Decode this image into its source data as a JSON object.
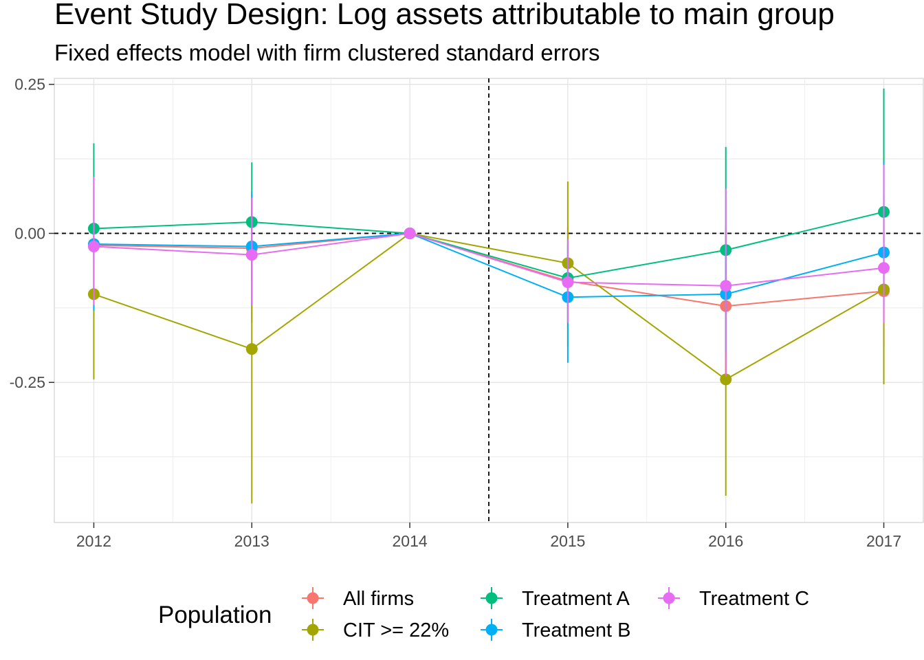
{
  "chart_data": {
    "type": "line",
    "title": "Event Study Design: Log assets attributable to main group",
    "subtitle": "Fixed effects model with firm clustered standard errors",
    "xlabel": "",
    "ylabel": "",
    "x": [
      2012,
      2013,
      2014,
      2015,
      2016,
      2017
    ],
    "xlim": [
      2011.75,
      2017.25
    ],
    "ylim": [
      -0.485,
      0.26
    ],
    "y_ticks": [
      -0.25,
      0.0,
      0.25
    ],
    "y_tick_labels": [
      "-0.25",
      "0.00",
      "0.25"
    ],
    "x_tick_labels": [
      "2012",
      "2013",
      "2014",
      "2015",
      "2016",
      "2017"
    ],
    "reference_lines": {
      "vertical_x": 2014.5,
      "horizontal_y": 0.0
    },
    "grid": true,
    "legend": {
      "title": "Population",
      "position": "bottom"
    },
    "series": [
      {
        "name": "All firms",
        "color": "#F8766D",
        "values": [
          -0.02,
          -0.025,
          0.0,
          -0.08,
          -0.122,
          -0.097
        ],
        "ci_lower": [
          -0.12,
          -0.15,
          0.0,
          -0.16,
          -0.25,
          -0.19
        ],
        "ci_upper": [
          0.08,
          0.06,
          0.0,
          0.01,
          0.01,
          0.01
        ]
      },
      {
        "name": "CIT >= 22%",
        "color": "#A3A500",
        "values": [
          -0.102,
          -0.194,
          0.0,
          -0.05,
          -0.245,
          -0.094
        ],
        "ci_lower": [
          -0.245,
          -0.453,
          0.0,
          -0.19,
          -0.44,
          -0.253
        ],
        "ci_upper": [
          0.04,
          0.065,
          0.0,
          0.087,
          -0.05,
          0.065
        ]
      },
      {
        "name": "Treatment A",
        "color": "#00BF7D",
        "values": [
          0.008,
          0.019,
          0.0,
          -0.075,
          -0.028,
          0.036
        ],
        "ci_lower": [
          -0.11,
          -0.08,
          0.0,
          -0.15,
          -0.1,
          -0.04
        ],
        "ci_upper": [
          0.151,
          0.119,
          0.0,
          -0.01,
          0.145,
          0.243
        ]
      },
      {
        "name": "Treatment B",
        "color": "#00B0F6",
        "values": [
          -0.018,
          -0.022,
          0.0,
          -0.107,
          -0.102,
          -0.032
        ],
        "ci_lower": [
          -0.13,
          -0.12,
          0.0,
          -0.217,
          -0.2,
          -0.12
        ],
        "ci_upper": [
          0.095,
          0.07,
          0.0,
          -0.02,
          -0.02,
          0.12
        ]
      },
      {
        "name": "Treatment C",
        "color": "#E76BF3",
        "values": [
          -0.022,
          -0.036,
          0.0,
          -0.082,
          -0.088,
          -0.058
        ],
        "ci_lower": [
          -0.12,
          -0.12,
          0.0,
          -0.15,
          -0.24,
          -0.15
        ],
        "ci_upper": [
          0.095,
          0.06,
          0.0,
          -0.01,
          0.075,
          0.115
        ]
      }
    ]
  }
}
